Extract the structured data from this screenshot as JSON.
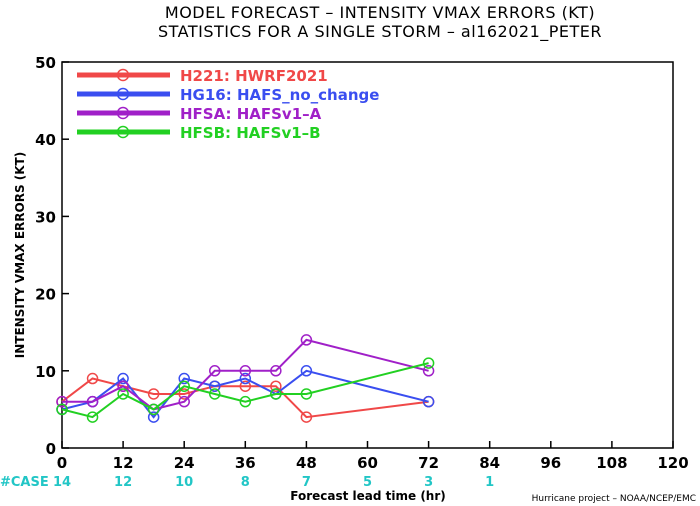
{
  "chart_data": {
    "type": "line",
    "title": "MODEL FORECAST – INTENSITY VMAX ERRORS (KT)",
    "subtitle": "STATISTICS FOR A SINGLE STORM – al162021_PETER",
    "xlabel": "Forecast lead time (hr)",
    "ylabel": "INTENSITY VMAX ERRORS (KT)",
    "xlim": [
      0,
      120
    ],
    "ylim": [
      0,
      50
    ],
    "x_ticks": [
      0,
      12,
      24,
      36,
      48,
      60,
      72,
      84,
      96,
      108,
      120
    ],
    "y_ticks": [
      0,
      10,
      20,
      30,
      40,
      50
    ],
    "legend_position": "top-left",
    "series": [
      {
        "name": "H221: HWRF2021",
        "color": "#f04848",
        "x": [
          0,
          6,
          12,
          18,
          24,
          30,
          36,
          42,
          48,
          72
        ],
        "y": [
          6,
          9,
          8,
          7,
          7,
          8,
          8,
          8,
          4,
          6
        ]
      },
      {
        "name": "HG16: HAFS_no_change",
        "color": "#3a4ef0",
        "x": [
          0,
          6,
          12,
          18,
          24,
          30,
          36,
          42,
          48,
          72
        ],
        "y": [
          5,
          6,
          9,
          4,
          9,
          8,
          9,
          7,
          10,
          6
        ]
      },
      {
        "name": "HFSA: HAFSv1–A",
        "color": "#a020c8",
        "x": [
          0,
          6,
          12,
          18,
          24,
          30,
          36,
          42,
          48,
          72
        ],
        "y": [
          6,
          6,
          8,
          5,
          6,
          10,
          10,
          10,
          14,
          10
        ]
      },
      {
        "name": "HFSB: HAFSv1–B",
        "color": "#22d022",
        "x": [
          0,
          6,
          12,
          18,
          24,
          30,
          36,
          42,
          48,
          72
        ],
        "y": [
          5,
          4,
          7,
          5,
          8,
          7,
          6,
          7,
          7,
          11
        ]
      }
    ],
    "case_label": "#CASE",
    "cases": [
      {
        "x": 0,
        "n": "14"
      },
      {
        "x": 12,
        "n": "12"
      },
      {
        "x": 24,
        "n": "10"
      },
      {
        "x": 36,
        "n": "8"
      },
      {
        "x": 48,
        "n": "7"
      },
      {
        "x": 60,
        "n": "5"
      },
      {
        "x": 72,
        "n": "3"
      },
      {
        "x": 84,
        "n": "1"
      }
    ]
  },
  "credit": "Hurricane project – NOAA/NCEP/EMC"
}
